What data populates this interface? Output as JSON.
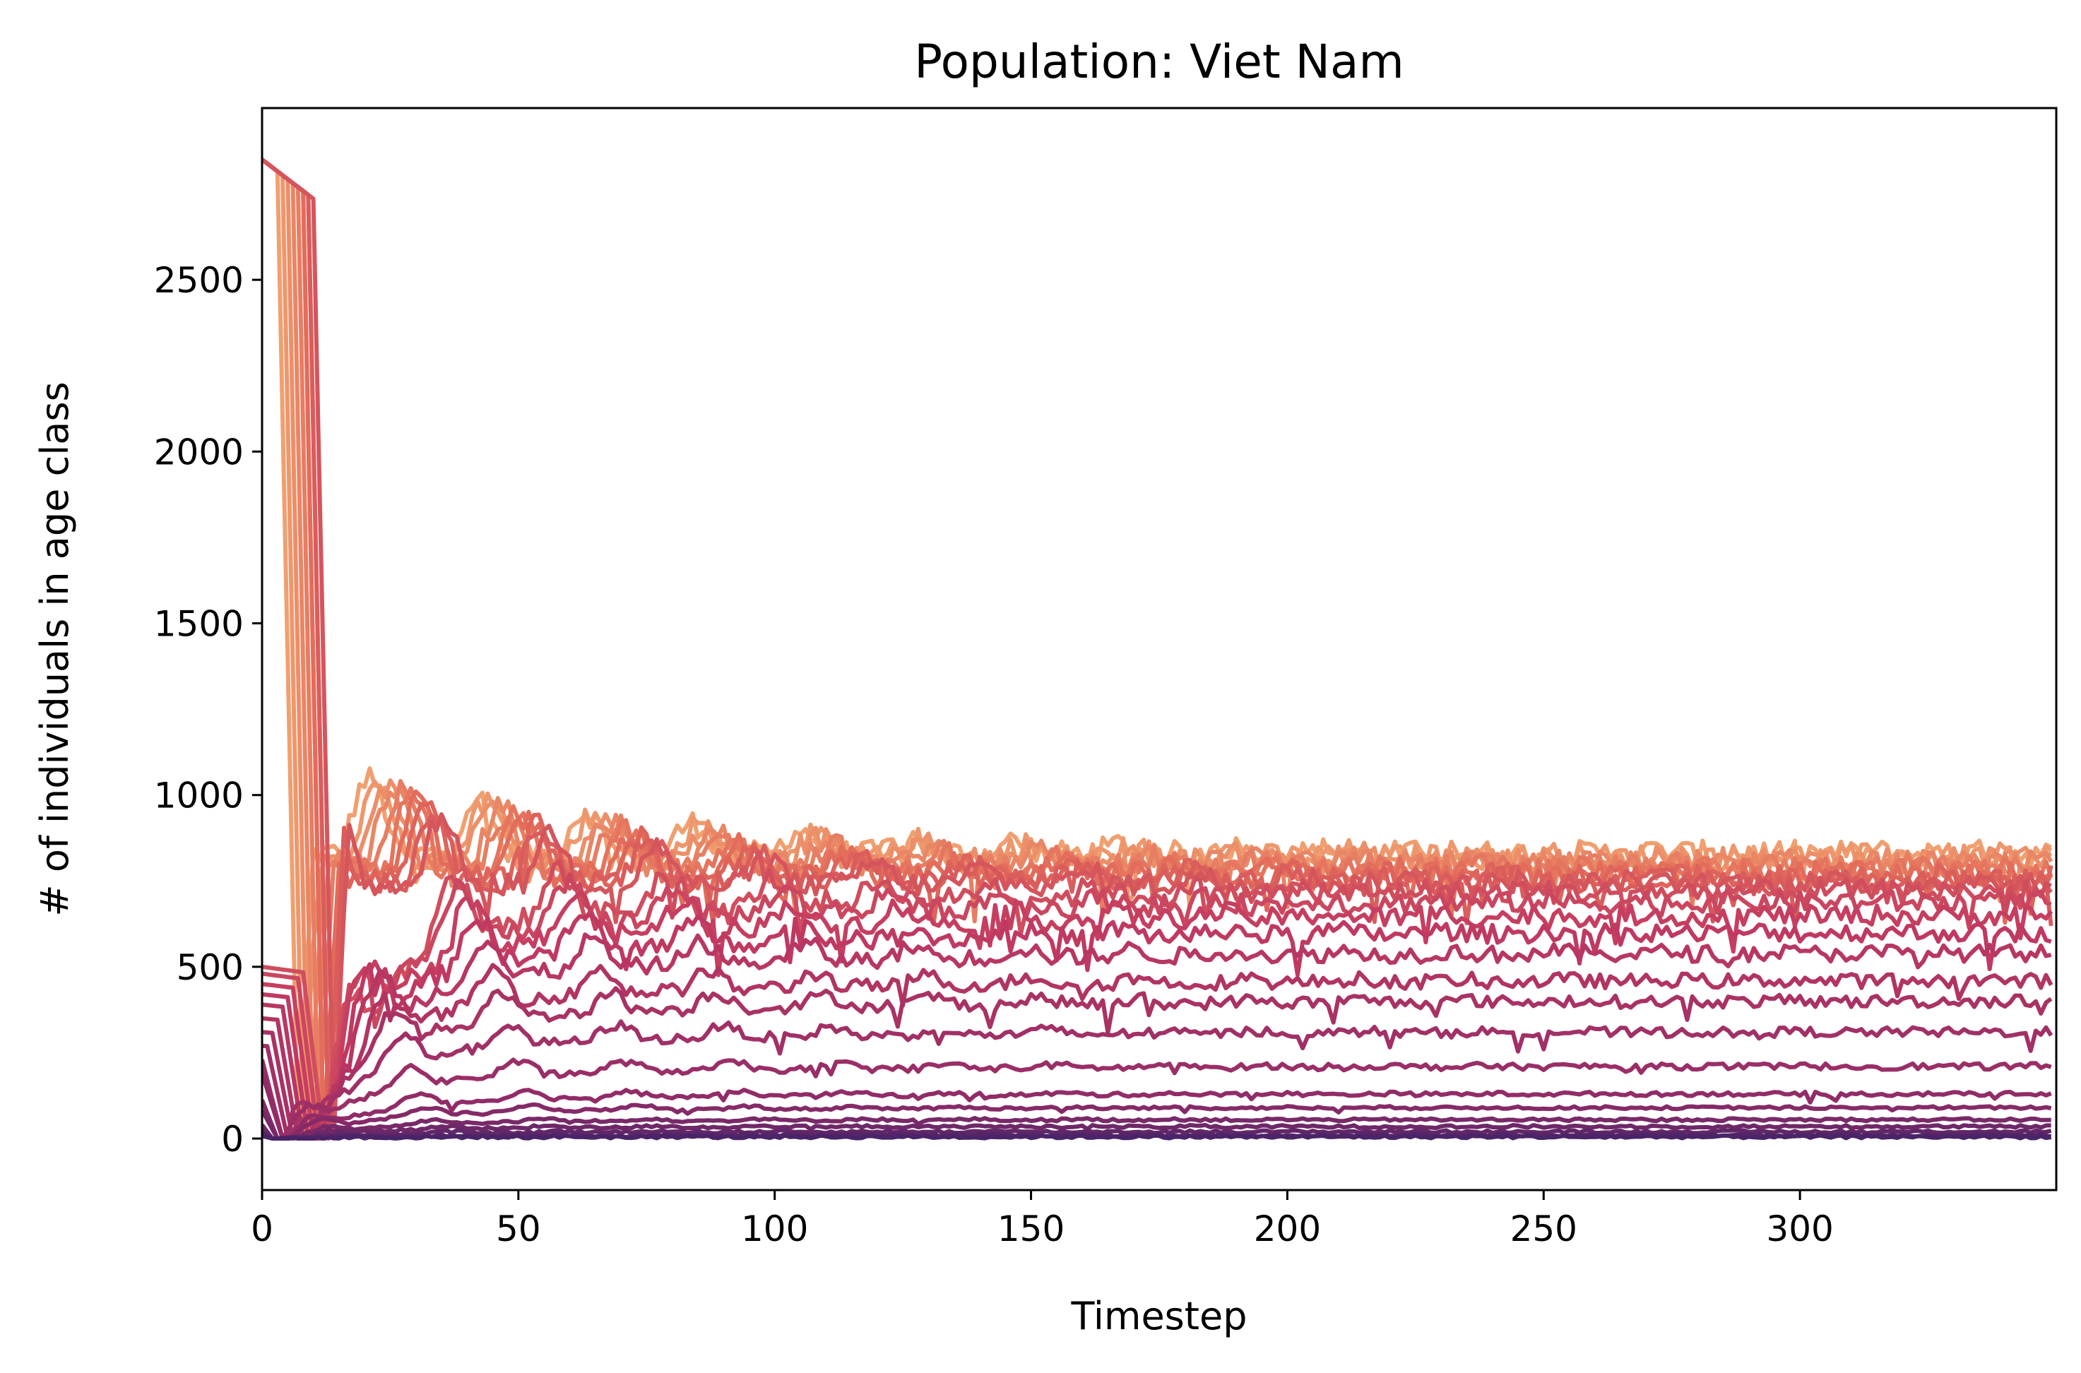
{
  "chart_data": {
    "type": "line",
    "title": "Population: Viet Nam",
    "xlabel": "Timestep",
    "ylabel": "# of individuals in age class",
    "xlim": [
      0,
      350
    ],
    "ylim": [
      -150,
      3000
    ],
    "xticks": [
      0,
      50,
      100,
      150,
      200,
      250,
      300
    ],
    "xtick_labels": [
      "0",
      "50",
      "100",
      "150",
      "200",
      "250",
      "300"
    ],
    "yticks": [
      0,
      500,
      1000,
      1500,
      2000,
      2500
    ],
    "ytick_labels": [
      "0",
      "500",
      "1000",
      "1500",
      "2000",
      "2500"
    ],
    "grid": false,
    "legend": "none",
    "colormap": "flare",
    "color_range": [
      "#f0a070",
      "#4a2468"
    ],
    "series_count": 26,
    "series_note_values": "approximate, one line per age class, ordered from oldest (light) to youngest (dark)",
    "initial_levels": [
      2850,
      2850,
      2850,
      2850,
      2850,
      2850,
      2850,
      2850,
      2850,
      2850,
      500,
      480,
      450,
      420,
      390,
      350,
      310,
      270,
      230,
      190,
      150,
      110,
      80,
      50,
      30,
      15
    ],
    "equilibrium_levels": [
      830,
      820,
      810,
      800,
      790,
      780,
      770,
      760,
      750,
      740,
      720,
      690,
      650,
      600,
      540,
      460,
      400,
      310,
      210,
      130,
      90,
      55,
      35,
      20,
      10,
      5
    ],
    "drop_timesteps": [
      7,
      8,
      9,
      10,
      11,
      12,
      12,
      13,
      13,
      14,
      12,
      11,
      10,
      9,
      8,
      7,
      6,
      5,
      4,
      4,
      3,
      3,
      2,
      2,
      2,
      2
    ],
    "secondary_peak": 1050
  }
}
